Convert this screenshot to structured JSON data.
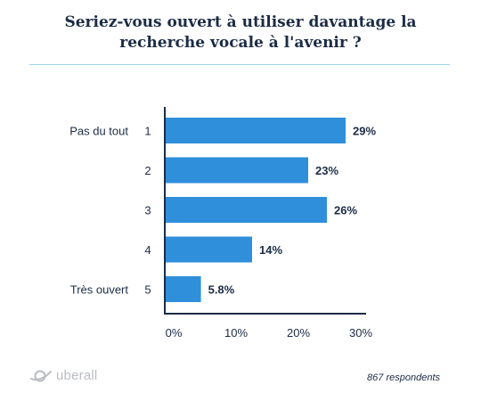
{
  "title_lines": [
    "Seriez-vous ouvert à utiliser davantage la",
    "recherche vocale à l'avenir ?"
  ],
  "brand": "uberall",
  "respondents": "867 respondents",
  "colors": {
    "bar": "#2f8fdb",
    "text": "#1c2c45",
    "divider": "#9fd3ea",
    "logo": "#b9bcc1"
  },
  "chart_data": {
    "type": "bar",
    "orientation": "horizontal",
    "categories": [
      "1",
      "2",
      "3",
      "4",
      "5"
    ],
    "category_descriptions": [
      "Pas du tout",
      "",
      "",
      "",
      "Très ouvert"
    ],
    "values": [
      29,
      23,
      26,
      14,
      5.8
    ],
    "value_labels": [
      "29%",
      "23%",
      "26%",
      "14%",
      "5.8%"
    ],
    "xlim": [
      0,
      30
    ],
    "x_ticks": [
      0,
      10,
      20,
      30
    ],
    "x_tick_labels": [
      "0%",
      "10%",
      "20%",
      "30%"
    ],
    "grid": false
  }
}
